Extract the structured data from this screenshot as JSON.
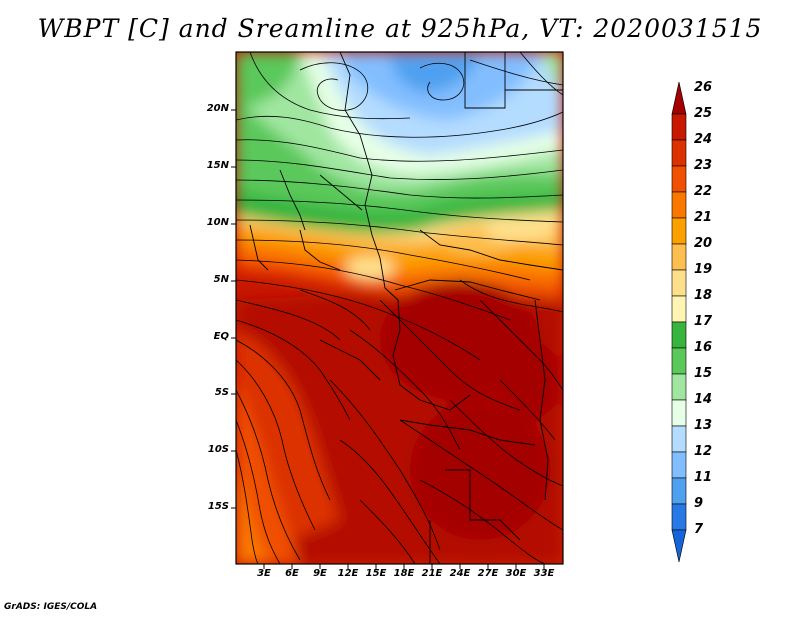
{
  "title": "WBPT [C] and Sreamline at 925hPa, VT: 2020031515",
  "credit": "GrADS: IGES/COLA",
  "lat_labels": [
    "20N",
    "15N",
    "10N",
    "5N",
    "EQ",
    "5S",
    "10S",
    "15S"
  ],
  "lon_labels": [
    "3E",
    "6E",
    "9E",
    "12E",
    "15E",
    "18E",
    "21E",
    "24E",
    "27E",
    "30E",
    "33E"
  ],
  "colorbar": {
    "labels": [
      "26",
      "25",
      "24",
      "23",
      "22",
      "21",
      "20",
      "19",
      "18",
      "17",
      "16",
      "15",
      "14",
      "13",
      "12",
      "11",
      "9",
      "7"
    ],
    "colors": [
      "#a50000",
      "#c81800",
      "#dc3200",
      "#f05000",
      "#fa7800",
      "#fca000",
      "#fdc050",
      "#fee08c",
      "#fff4b4",
      "#36b43c",
      "#5ac85a",
      "#a0e6a0",
      "#e6ffe6",
      "#b4dcff",
      "#82beff",
      "#50a0f0",
      "#2878e6",
      "#1464dc"
    ]
  }
}
